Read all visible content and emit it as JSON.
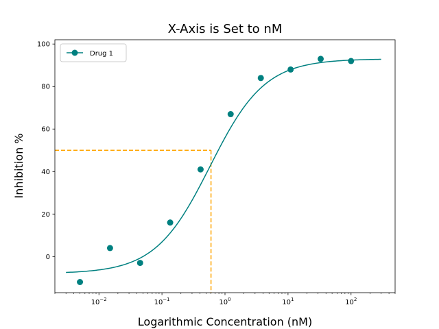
{
  "chart_data": {
    "type": "scatter",
    "title": "X-Axis is Set to nM",
    "xlabel": "Logarithmic Concentration (nM)",
    "ylabel": "Inhibition %",
    "xscale": "log",
    "xlim": [
      0.002,
      500
    ],
    "ylim": [
      -17,
      102
    ],
    "xticks": [
      {
        "value": 0.01,
        "base": "10",
        "exp": "−2"
      },
      {
        "value": 0.1,
        "base": "10",
        "exp": "−1"
      },
      {
        "value": 1,
        "base": "10",
        "exp": "0"
      },
      {
        "value": 10,
        "base": "10",
        "exp": "1"
      },
      {
        "value": 100,
        "base": "10",
        "exp": "2"
      }
    ],
    "yticks": [
      0,
      20,
      40,
      60,
      80,
      100
    ],
    "grid": false,
    "legend": {
      "position": "top-left"
    },
    "series": [
      {
        "name": "Drug 1",
        "color": "#008080",
        "marker": "circle",
        "points": [
          {
            "x": 0.005,
            "y": -12
          },
          {
            "x": 0.015,
            "y": 4
          },
          {
            "x": 0.045,
            "y": -3
          },
          {
            "x": 0.135,
            "y": 16
          },
          {
            "x": 0.41,
            "y": 41
          },
          {
            "x": 1.23,
            "y": 67
          },
          {
            "x": 3.7,
            "y": 84
          },
          {
            "x": 11,
            "y": 88
          },
          {
            "x": 33,
            "y": 93
          },
          {
            "x": 100,
            "y": 92
          }
        ],
        "fit_curve": {
          "model": "four-parameter logistic",
          "bottom": -8,
          "top": 93,
          "ic50": 0.58,
          "hill": 1.0,
          "x_range": [
            0.003,
            300
          ]
        }
      }
    ],
    "reference_lines": {
      "color": "#ffa500",
      "style": "dashed",
      "ic50_x": 0.6,
      "ic50_y": 50
    }
  }
}
